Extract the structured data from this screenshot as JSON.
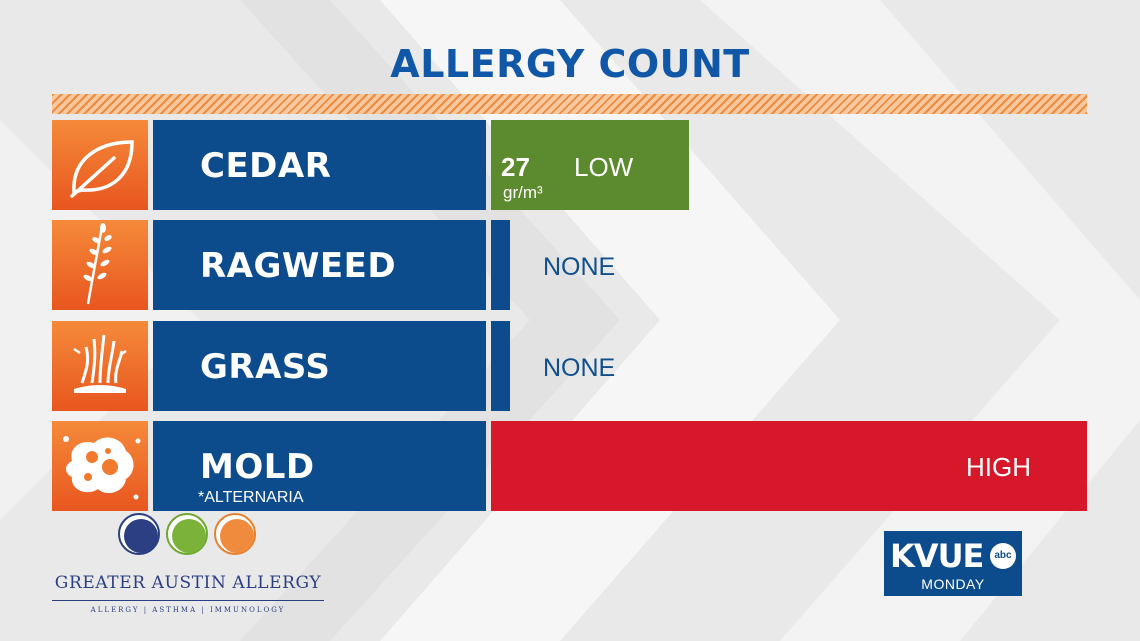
{
  "title": "ALLERGY COUNT",
  "allergens": [
    {
      "name": "CEDAR",
      "icon": "leaf-icon",
      "count": "27",
      "unit": "gr/m³",
      "level": "LOW",
      "level_color": "#5c8a2e",
      "bar_fraction": 0.33
    },
    {
      "name": "RAGWEED",
      "icon": "ragweed-icon",
      "level": "NONE",
      "bar_fraction": 0.03
    },
    {
      "name": "GRASS",
      "icon": "grass-icon",
      "level": "NONE",
      "bar_fraction": 0.03
    },
    {
      "name": "MOLD",
      "subtitle": "*ALTERNARIA",
      "icon": "mold-icon",
      "level": "HIGH",
      "level_color": "#d7182a",
      "bar_fraction": 1.0
    }
  ],
  "colors": {
    "title": "#1157a8",
    "name_bg": "#0c4c8c",
    "icon_orange": "#f07a2e",
    "low": "#5c8a2e",
    "high": "#d7182a"
  },
  "sponsor": {
    "name": "GREATER AUSTIN ALLERGY",
    "tagline": "ALLERGY | ASTHMA | IMMUNOLOGY",
    "badges": [
      "plant-badge-icon",
      "bee-badge-icon",
      "food-badge-icon"
    ]
  },
  "station": {
    "logo": "KVUE",
    "network": "abc",
    "day": "MONDAY"
  }
}
